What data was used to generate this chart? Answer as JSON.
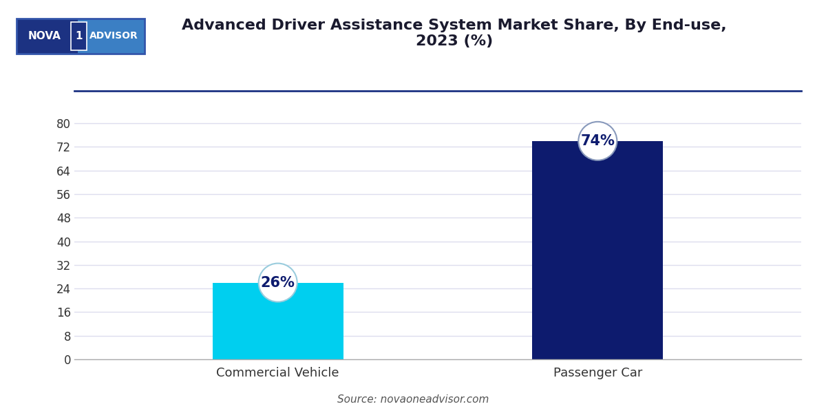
{
  "title": "Advanced Driver Assistance System Market Share, By End-use,\n2023 (%)",
  "categories": [
    "Commercial Vehicle",
    "Passenger Car"
  ],
  "values": [
    26,
    74
  ],
  "bar_colors": [
    "#00CFEF",
    "#0D1B6E"
  ],
  "circle_fill": "#FFFFFF",
  "circle_edge_colors": [
    "#99CCDD",
    "#8899BB"
  ],
  "labels": [
    "26%",
    "74%"
  ],
  "label_color": "#0D1B6E",
  "ylim": [
    0,
    84
  ],
  "yticks": [
    0,
    8,
    16,
    24,
    32,
    40,
    48,
    56,
    64,
    72,
    80
  ],
  "source_text": "Source: novaoneadvisor.com",
  "bg_color": "#FFFFFF",
  "plot_bg_color": "#FFFFFF",
  "grid_color": "#DDDDEE",
  "title_color": "#1A1A2E",
  "axis_color": "#333333",
  "title_fontsize": 16,
  "tick_fontsize": 12,
  "label_fontsize": 15,
  "source_fontsize": 11,
  "logo_text_nova": "NOVA",
  "logo_text_1": "1",
  "logo_text_advisor": "ADVISOR",
  "logo_bg_dark": "#1C3282",
  "logo_bg_light": "#3B7FC4",
  "separator_line_color": "#1C3282",
  "bar_width": 0.18
}
